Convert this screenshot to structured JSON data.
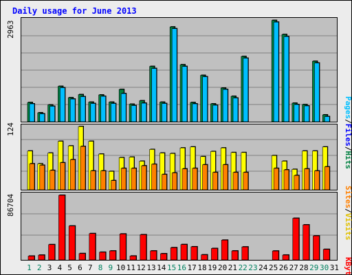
{
  "chart_data": [
    {
      "type": "bar",
      "title": "Daily usage for June 2013",
      "categories": [
        "1",
        "2",
        "3",
        "4",
        "5",
        "6",
        "7",
        "8",
        "9",
        "10",
        "11",
        "12",
        "13",
        "14",
        "15",
        "16",
        "17",
        "18",
        "19",
        "20",
        "21",
        "22",
        "23",
        "24",
        "25",
        "26",
        "27",
        "28",
        "29",
        "30",
        "31"
      ],
      "weekend_days": [
        "1",
        "2",
        "8",
        "9",
        "15",
        "16",
        "22",
        "23",
        "29",
        "30"
      ],
      "ymax_label": "2963",
      "ylim": [
        0,
        2963
      ],
      "legend": [
        "Pages",
        "Files",
        "Hits"
      ],
      "series": [
        {
          "name": "Hits",
          "color": "#008040",
          "values": [
            560,
            260,
            490,
            1030,
            700,
            790,
            570,
            780,
            570,
            940,
            510,
            610,
            1610,
            570,
            2760,
            1660,
            560,
            1350,
            520,
            980,
            740,
            1900,
            0,
            0,
            2950,
            2540,
            540,
            500,
            1760,
            200,
            0
          ]
        },
        {
          "name": "Files",
          "color": "#00bfff",
          "values": [
            520,
            230,
            450,
            990,
            660,
            730,
            530,
            740,
            530,
            820,
            470,
            540,
            1550,
            530,
            2710,
            1610,
            520,
            1310,
            480,
            940,
            690,
            1850,
            0,
            0,
            2900,
            2480,
            500,
            460,
            1710,
            150,
            0
          ]
        }
      ]
    },
    {
      "type": "bar",
      "ymax_label": "124",
      "ylim": [
        0,
        124
      ],
      "legend": [
        "Sites",
        "Visits"
      ],
      "series": [
        {
          "name": "Visits",
          "color": "#ffff00",
          "values": [
            76,
            51,
            72,
            95,
            86,
            124,
            95,
            70,
            36,
            63,
            64,
            56,
            79,
            72,
            71,
            82,
            84,
            65,
            75,
            82,
            73,
            73,
            0,
            0,
            67,
            56,
            40,
            76,
            76,
            84,
            0
          ]
        },
        {
          "name": "Sites",
          "color": "#ff8000",
          "values": [
            51,
            48,
            38,
            53,
            59,
            85,
            37,
            37,
            18,
            42,
            42,
            47,
            50,
            30,
            33,
            41,
            42,
            49,
            34,
            49,
            34,
            34,
            0,
            0,
            42,
            39,
            28,
            41,
            37,
            45,
            0
          ]
        }
      ]
    },
    {
      "type": "bar",
      "ymax_label": "86704",
      "ylim": [
        0,
        86704
      ],
      "legend": [
        "KBytes"
      ],
      "series": [
        {
          "name": "KBytes",
          "color": "#ff0000",
          "values": [
            5100,
            6400,
            20500,
            86704,
            45500,
            8500,
            35300,
            10300,
            12000,
            34800,
            5200,
            33800,
            12000,
            8300,
            16400,
            20600,
            17600,
            6800,
            15300,
            26500,
            12000,
            17400,
            0,
            0,
            11900,
            6500,
            55800,
            47000,
            32200,
            14100,
            0
          ]
        }
      ]
    }
  ],
  "x_labels": [
    "1",
    "2",
    "3",
    "4",
    "5",
    "6",
    "7",
    "8",
    "9",
    "10",
    "11",
    "12",
    "13",
    "14",
    "15",
    "16",
    "17",
    "18",
    "19",
    "20",
    "21",
    "22",
    "23",
    "24",
    "25",
    "26",
    "27",
    "28",
    "29",
    "30",
    "31"
  ],
  "weekend_days": [
    "1",
    "2",
    "8",
    "9",
    "15",
    "16",
    "22",
    "23",
    "29",
    "30"
  ],
  "colors": {
    "title": "#0000ff",
    "weekend_label": "#00805f",
    "weekday_label": "#000000",
    "plot_bg": "#c0c0c0",
    "page_bg": "#ececec",
    "hits": "#008040",
    "files": "#00bfff",
    "pages": "#00bfff",
    "visits": "#ffff00",
    "sites": "#ff8000",
    "kbytes": "#ff0000"
  }
}
